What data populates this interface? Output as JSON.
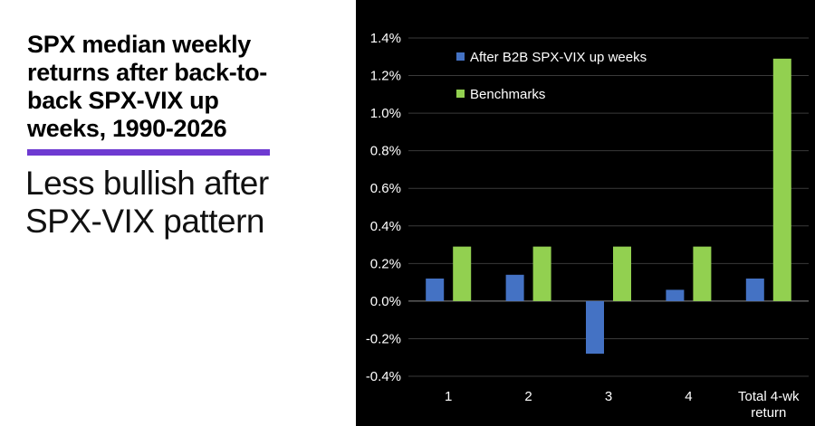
{
  "headline": {
    "lines": [
      "SPX median weekly",
      "returns after back-to-",
      "back SPX-VIX up",
      "weeks, 1990-2026"
    ]
  },
  "subhead": {
    "lines": [
      "Less bullish after",
      "SPX-VIX pattern"
    ]
  },
  "colors": {
    "accent": "#6e3ad1",
    "series_blue": "#4472c4",
    "series_green": "#92d050",
    "chart_bg": "#000000"
  },
  "chart_data": {
    "type": "bar",
    "categories": [
      [
        "1"
      ],
      [
        "2"
      ],
      [
        "3"
      ],
      [
        "4"
      ],
      [
        "Total 4-wk",
        "return"
      ]
    ],
    "series": [
      {
        "name": "After B2B SPX-VIX up weeks",
        "color": "#4472c4",
        "values": [
          0.12,
          0.14,
          -0.28,
          0.06,
          0.12
        ]
      },
      {
        "name": "Benchmarks",
        "color": "#92d050",
        "values": [
          0.29,
          0.29,
          0.29,
          0.29,
          1.29
        ]
      }
    ],
    "yticks": [
      "1.4%",
      "1.2%",
      "1.0%",
      "0.8%",
      "0.6%",
      "0.4%",
      "0.2%",
      "0.0%",
      "-0.2%",
      "-0.4%"
    ],
    "ytick_values": [
      1.4,
      1.2,
      1.0,
      0.8,
      0.6,
      0.4,
      0.2,
      0.0,
      -0.2,
      -0.4
    ],
    "ylim": [
      -0.4,
      1.4
    ],
    "grid": true,
    "legend_position": "top-left",
    "title": "",
    "xlabel": "",
    "ylabel": ""
  }
}
